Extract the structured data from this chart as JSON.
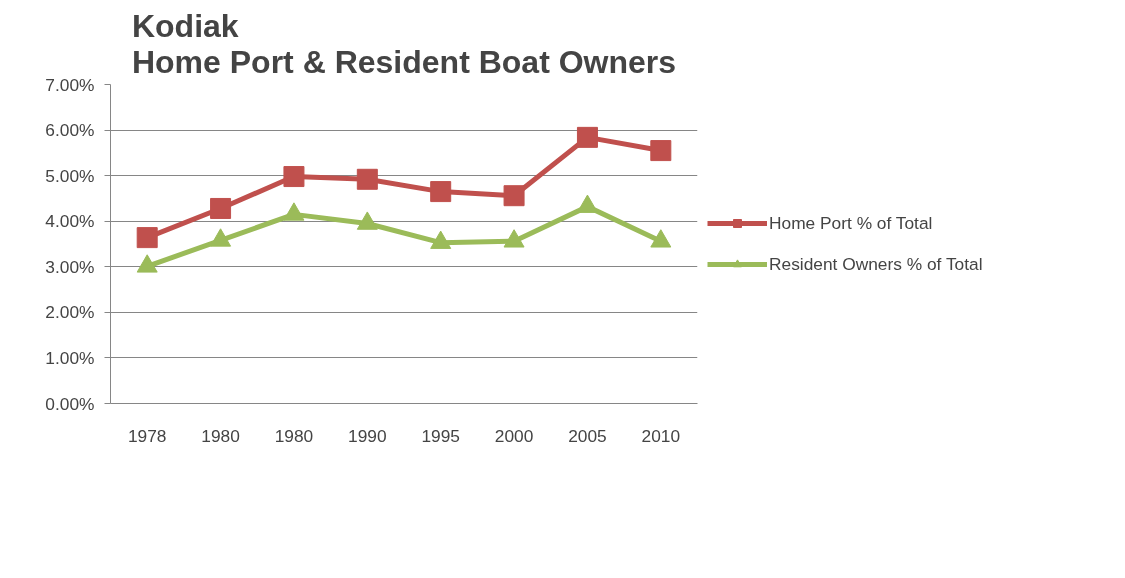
{
  "chart_data": {
    "type": "line",
    "title": "Kodiak\nHome Port & Resident Boat Owners",
    "categories": [
      "1978",
      "1980",
      "1980",
      "1990",
      "1995",
      "2000",
      "2005",
      "2010"
    ],
    "series": [
      {
        "name": "Home Port % of Total",
        "color": "#c0504d",
        "marker": "square",
        "values": [
          3.64,
          4.28,
          4.98,
          4.92,
          4.65,
          4.56,
          5.84,
          5.55
        ]
      },
      {
        "name": "Resident Owners % of Total",
        "color": "#9bbb59",
        "marker": "triangle",
        "values": [
          3.01,
          3.58,
          4.15,
          3.95,
          3.53,
          3.56,
          4.32,
          3.56
        ]
      }
    ],
    "ylim": [
      0,
      7
    ],
    "yticks": [
      {
        "value": 0,
        "label": "0.00%"
      },
      {
        "value": 1,
        "label": "1.00%"
      },
      {
        "value": 2,
        "label": "2.00%"
      },
      {
        "value": 3,
        "label": "3.00%"
      },
      {
        "value": 4,
        "label": "4.00%"
      },
      {
        "value": 5,
        "label": "5.00%"
      },
      {
        "value": 6,
        "label": "6.00%"
      },
      {
        "value": 7,
        "label": "7.00%"
      }
    ],
    "grid": "y",
    "legend": "right",
    "line_style": "solid"
  }
}
